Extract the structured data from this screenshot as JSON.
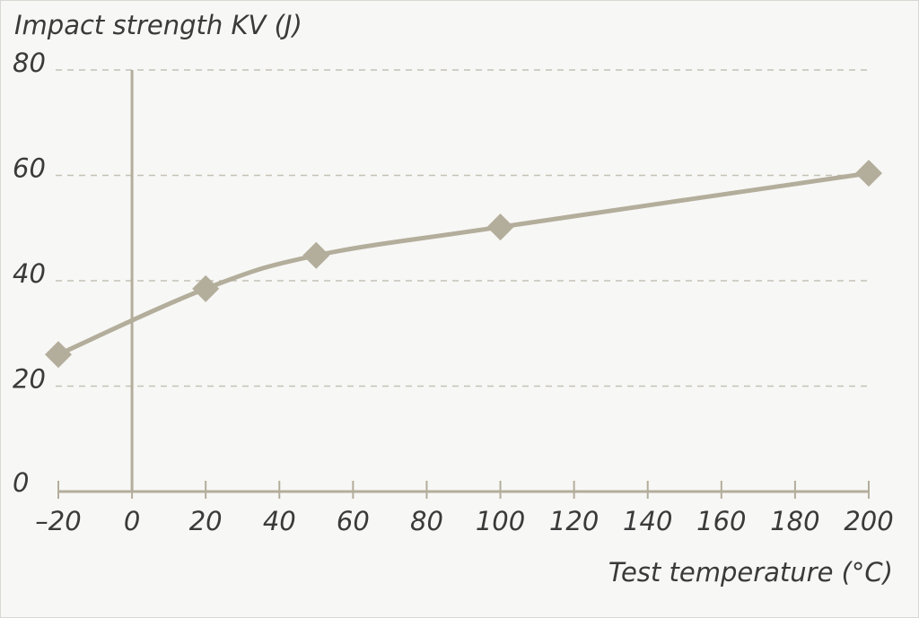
{
  "chart_data": {
    "type": "line",
    "ylabel": "Impact strength KV (J)",
    "xlabel": "Test temperature (°C)",
    "x_ticks": [
      -20,
      0,
      20,
      40,
      60,
      80,
      100,
      120,
      140,
      160,
      180,
      200
    ],
    "x_tick_labels": [
      "–20",
      "0",
      "20",
      "40",
      "60",
      "80",
      "100",
      "120",
      "140",
      "160",
      "180",
      "200"
    ],
    "y_ticks": [
      0,
      20,
      40,
      60,
      80
    ],
    "y_tick_labels": [
      "0",
      "20",
      "40",
      "60",
      "80"
    ],
    "xlim": [
      -20,
      200
    ],
    "ylim": [
      0,
      80
    ],
    "grid": "horizontal dashed",
    "marker": "diamond",
    "series": [
      {
        "x": [
          -20,
          20,
          50,
          100,
          200
        ],
        "y": [
          26,
          38.5,
          44.8,
          50.2,
          60.4
        ],
        "color": "#b3ad9b"
      }
    ],
    "colors": {
      "series": "#b3ad9b",
      "axis": "#b3ad9b",
      "grid": "#c4c1b6",
      "text": "#3a3a3a",
      "background": "#f7f7f5"
    }
  }
}
